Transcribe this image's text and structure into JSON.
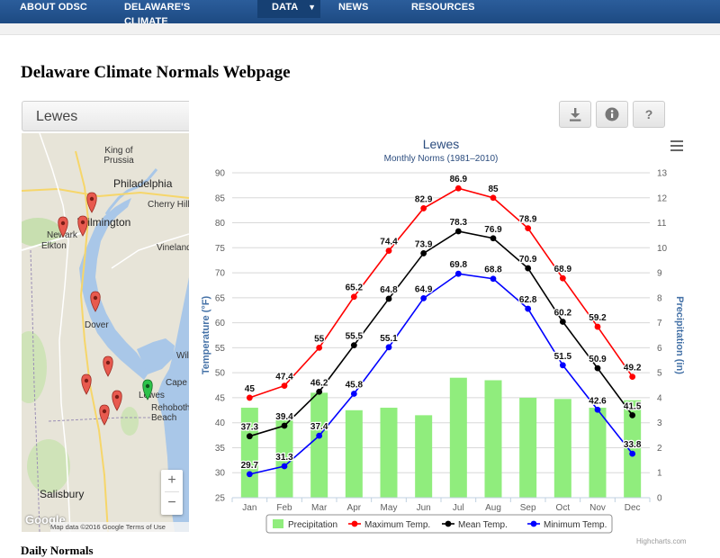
{
  "nav": {
    "items": [
      {
        "label": "ABOUT ODSC"
      },
      {
        "label": "DELAWARE'S CLIMATE"
      },
      {
        "label": "DATA",
        "active": true
      },
      {
        "label": "NEWS"
      },
      {
        "label": "RESOURCES"
      }
    ],
    "dropdown_glyph": "▼"
  },
  "page": {
    "title": "Delaware Climate Normals Webpage",
    "bottom_heading": "Daily Normals"
  },
  "station_select": {
    "value": "Lewes"
  },
  "toolbar": {
    "download_icon": "download-icon",
    "info_icon": "info-icon",
    "help_icon": "help-icon",
    "help_label": "?"
  },
  "map": {
    "labels": {
      "king_of_prussia": "King of Prussia",
      "philadelphia": "Philadelphia",
      "cherry_hill": "Cherry Hill",
      "wilmington": "Wilmington",
      "newark": "Newark",
      "elkton": "Elkton",
      "vineland": "Vineland",
      "dover": "Dover",
      "wild": "Wild",
      "cape_may": "Cape M",
      "lewes": "Lewes",
      "rehoboth": "Rehoboth Beach",
      "salisbury": "Salisbury"
    },
    "zoom_in": "+",
    "zoom_out": "−",
    "attribution": "Map data ©2016 Google   Terms of Use",
    "logo": "Google",
    "marker_colors": {
      "station": "#e85a4f",
      "selected": "#2dc24a"
    }
  },
  "chart_data": {
    "type": "bar",
    "title": "Lewes",
    "subtitle": "Monthly Norms (1981–2010)",
    "categories": [
      "Jan",
      "Feb",
      "Mar",
      "Apr",
      "May",
      "Jun",
      "Jul",
      "Aug",
      "Sep",
      "Oct",
      "Nov",
      "Dec"
    ],
    "y_left": {
      "label": "Temperature (°F)",
      "min": 25,
      "max": 90,
      "ticks": [
        25,
        30,
        35,
        40,
        45,
        50,
        55,
        60,
        65,
        70,
        75,
        80,
        85,
        90
      ]
    },
    "y_right": {
      "label": "Precipitation (in)",
      "min": 0,
      "max": 13,
      "ticks": [
        0,
        1,
        2,
        3,
        4,
        5,
        6,
        7,
        8,
        9,
        10,
        11,
        12,
        13
      ]
    },
    "grid": true,
    "legend_position": "bottom",
    "series": [
      {
        "name": "Precipitation",
        "type": "bar",
        "axis": "right",
        "color": "#90ed7d",
        "values": [
          3.6,
          3.1,
          4.2,
          3.5,
          3.6,
          3.3,
          4.8,
          4.7,
          4.0,
          3.95,
          3.6,
          3.9
        ]
      },
      {
        "name": "Maximum Temp.",
        "type": "line",
        "axis": "left",
        "color": "#ff0000",
        "values": [
          45,
          47.4,
          55,
          65.2,
          74.4,
          82.9,
          86.9,
          85,
          78.9,
          68.9,
          59.2,
          49.2
        ]
      },
      {
        "name": "Mean Temp.",
        "type": "line",
        "axis": "left",
        "color": "#000000",
        "values": [
          37.3,
          39.4,
          46.2,
          55.5,
          64.8,
          73.9,
          78.3,
          76.9,
          70.9,
          60.2,
          50.9,
          41.5
        ]
      },
      {
        "name": "Minimum Temp.",
        "type": "line",
        "axis": "left",
        "color": "#0000ff",
        "values": [
          29.7,
          31.3,
          37.4,
          45.8,
          55.1,
          64.9,
          69.8,
          68.8,
          62.8,
          51.5,
          42.6,
          33.8
        ]
      }
    ],
    "credits": "Highcharts.com"
  }
}
